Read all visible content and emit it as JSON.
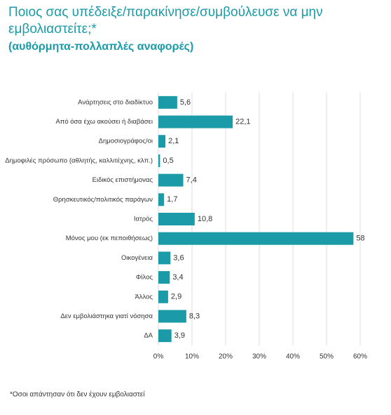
{
  "chart_data": {
    "type": "hbar",
    "title": "Ποιος σας υπέδειξε/παρακίνησε/συμβούλευσε να μην εμβολιαστείτε;*",
    "subtitle": "(αυθόρμητα-πολλαπλές αναφορές)",
    "footnote": "*Οσοι απάντησαν ότι δεν έχουν εμβολιαστεί",
    "categories": [
      "Ανάρτησεις στο διαδίκτυο",
      "Από όσα έχω ακούσει ή διαβάσει",
      "Δημοσιογράφος/οι",
      "Δημοφιλές πρόσωπο (αθλητής, καλλιτέχνης, κλπ.)",
      "Ειδικός επιστήμονας",
      "Θρησκευτικός/πολιτικός παράγων",
      "Ιατρός",
      "Μόνος μου (εκ πεποιθήσεως)",
      "Οικογένεια",
      "Φίλος",
      "Άλλος",
      "Δεν εμβολιάστηκα γιατί νόσησα",
      "ΔΑ"
    ],
    "values": [
      5.6,
      22.1,
      2.1,
      0.5,
      7.4,
      1.7,
      10.8,
      58,
      3.6,
      3.4,
      2.9,
      8.3,
      3.9
    ],
    "value_labels": [
      "5,6",
      "22,1",
      "2,1",
      "0,5",
      "7,4",
      "1,7",
      "10,8",
      "58",
      "3,6",
      "3,4",
      "2,9",
      "8,3",
      "3,9"
    ],
    "color": "#1b9ba8",
    "xlim": [
      0,
      60
    ],
    "xticks": [
      {
        "value": 0,
        "label": "0%"
      },
      {
        "value": 10,
        "label": "10%"
      },
      {
        "value": 20,
        "label": "20%"
      },
      {
        "value": 30,
        "label": "30%"
      },
      {
        "value": 40,
        "label": "40%"
      },
      {
        "value": 50,
        "label": "50%"
      },
      {
        "value": 60,
        "label": "60%"
      }
    ],
    "grid": true
  }
}
